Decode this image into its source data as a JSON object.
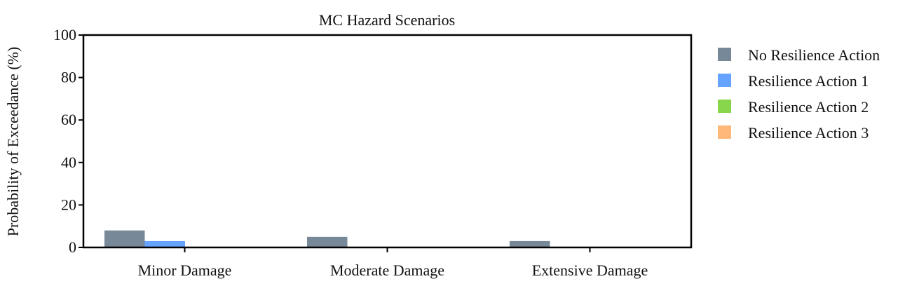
{
  "chart_data": {
    "type": "bar",
    "title": "MC Hazard Scenarios",
    "xlabel": "",
    "ylabel": "Probability of Exceedance (%)",
    "ylim": [
      0,
      100
    ],
    "yticks": [
      0,
      20,
      40,
      60,
      80,
      100
    ],
    "grid": false,
    "legend_position": "right",
    "categories": [
      "Minor Damage",
      "Moderate Damage",
      "Extensive Damage"
    ],
    "series": [
      {
        "name": "No Resilience Action",
        "color": "#778899",
        "values": [
          8,
          5,
          3
        ]
      },
      {
        "name": "Resilience Action 1",
        "color": "#66A3FF",
        "values": [
          3,
          0,
          0
        ]
      },
      {
        "name": "Resilience Action 2",
        "color": "#88D64C",
        "values": [
          0,
          0,
          0
        ]
      },
      {
        "name": "Resilience Action 3",
        "color": "#FDB87A",
        "values": [
          0,
          0,
          0
        ]
      }
    ]
  }
}
